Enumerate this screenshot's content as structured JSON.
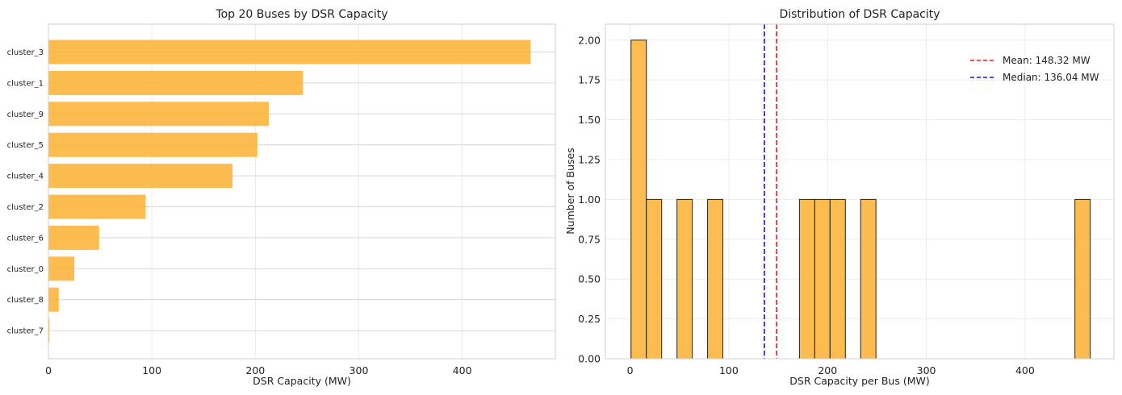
{
  "chart_data": [
    {
      "type": "bar",
      "orientation": "horizontal",
      "title": "Top 20 Buses by DSR Capacity",
      "xlabel": "DSR Capacity (MW)",
      "ylabel": "",
      "categories": [
        "cluster_3",
        "cluster_1",
        "cluster_9",
        "cluster_5",
        "cluster_4",
        "cluster_2",
        "cluster_6",
        "cluster_0",
        "cluster_8",
        "cluster_7"
      ],
      "values": [
        466,
        246,
        213,
        202,
        178,
        94,
        49,
        25,
        10,
        1
      ],
      "xlim": [
        0,
        490
      ],
      "xticks": [
        0,
        100,
        200,
        300,
        400
      ],
      "xtick_labels": [
        "0",
        "100",
        "200",
        "300",
        "400"
      ],
      "bar_color": "#FBB030",
      "grid": true
    },
    {
      "type": "bar",
      "subtype": "histogram",
      "title": "Distribution of DSR Capacity",
      "xlabel": "DSR Capacity per Bus (MW)",
      "ylabel": "Number of Buses",
      "bins": [
        {
          "x0": 1.0,
          "x1": 16.5,
          "count": 2
        },
        {
          "x0": 16.5,
          "x1": 32.0,
          "count": 1
        },
        {
          "x0": 47.5,
          "x1": 63.0,
          "count": 1
        },
        {
          "x0": 78.5,
          "x1": 94.0,
          "count": 1
        },
        {
          "x0": 171.5,
          "x1": 187.0,
          "count": 1
        },
        {
          "x0": 187.0,
          "x1": 202.5,
          "count": 1
        },
        {
          "x0": 202.5,
          "x1": 218.0,
          "count": 1
        },
        {
          "x0": 233.5,
          "x1": 249.0,
          "count": 1
        },
        {
          "x0": 450.5,
          "x1": 466.0,
          "count": 1
        }
      ],
      "xlim": [
        -25,
        490
      ],
      "ylim": [
        0,
        2.1
      ],
      "xticks": [
        0,
        100,
        200,
        300,
        400
      ],
      "xtick_labels": [
        "0",
        "100",
        "200",
        "300",
        "400"
      ],
      "yticks": [
        0,
        0.25,
        0.5,
        0.75,
        1.0,
        1.25,
        1.5,
        1.75,
        2.0
      ],
      "ytick_labels": [
        "0.00",
        "0.25",
        "0.50",
        "0.75",
        "1.00",
        "1.25",
        "1.50",
        "1.75",
        "2.00"
      ],
      "bar_color": "#FBB030",
      "edge_color": "#222222",
      "mean": {
        "value": 148.32,
        "label": "Mean: 148.32 MW",
        "color": "#E8191B"
      },
      "median": {
        "value": 136.04,
        "label": "Median: 136.04 MW",
        "color": "#1010D8"
      },
      "legend_position": "top-right",
      "grid": true
    }
  ]
}
